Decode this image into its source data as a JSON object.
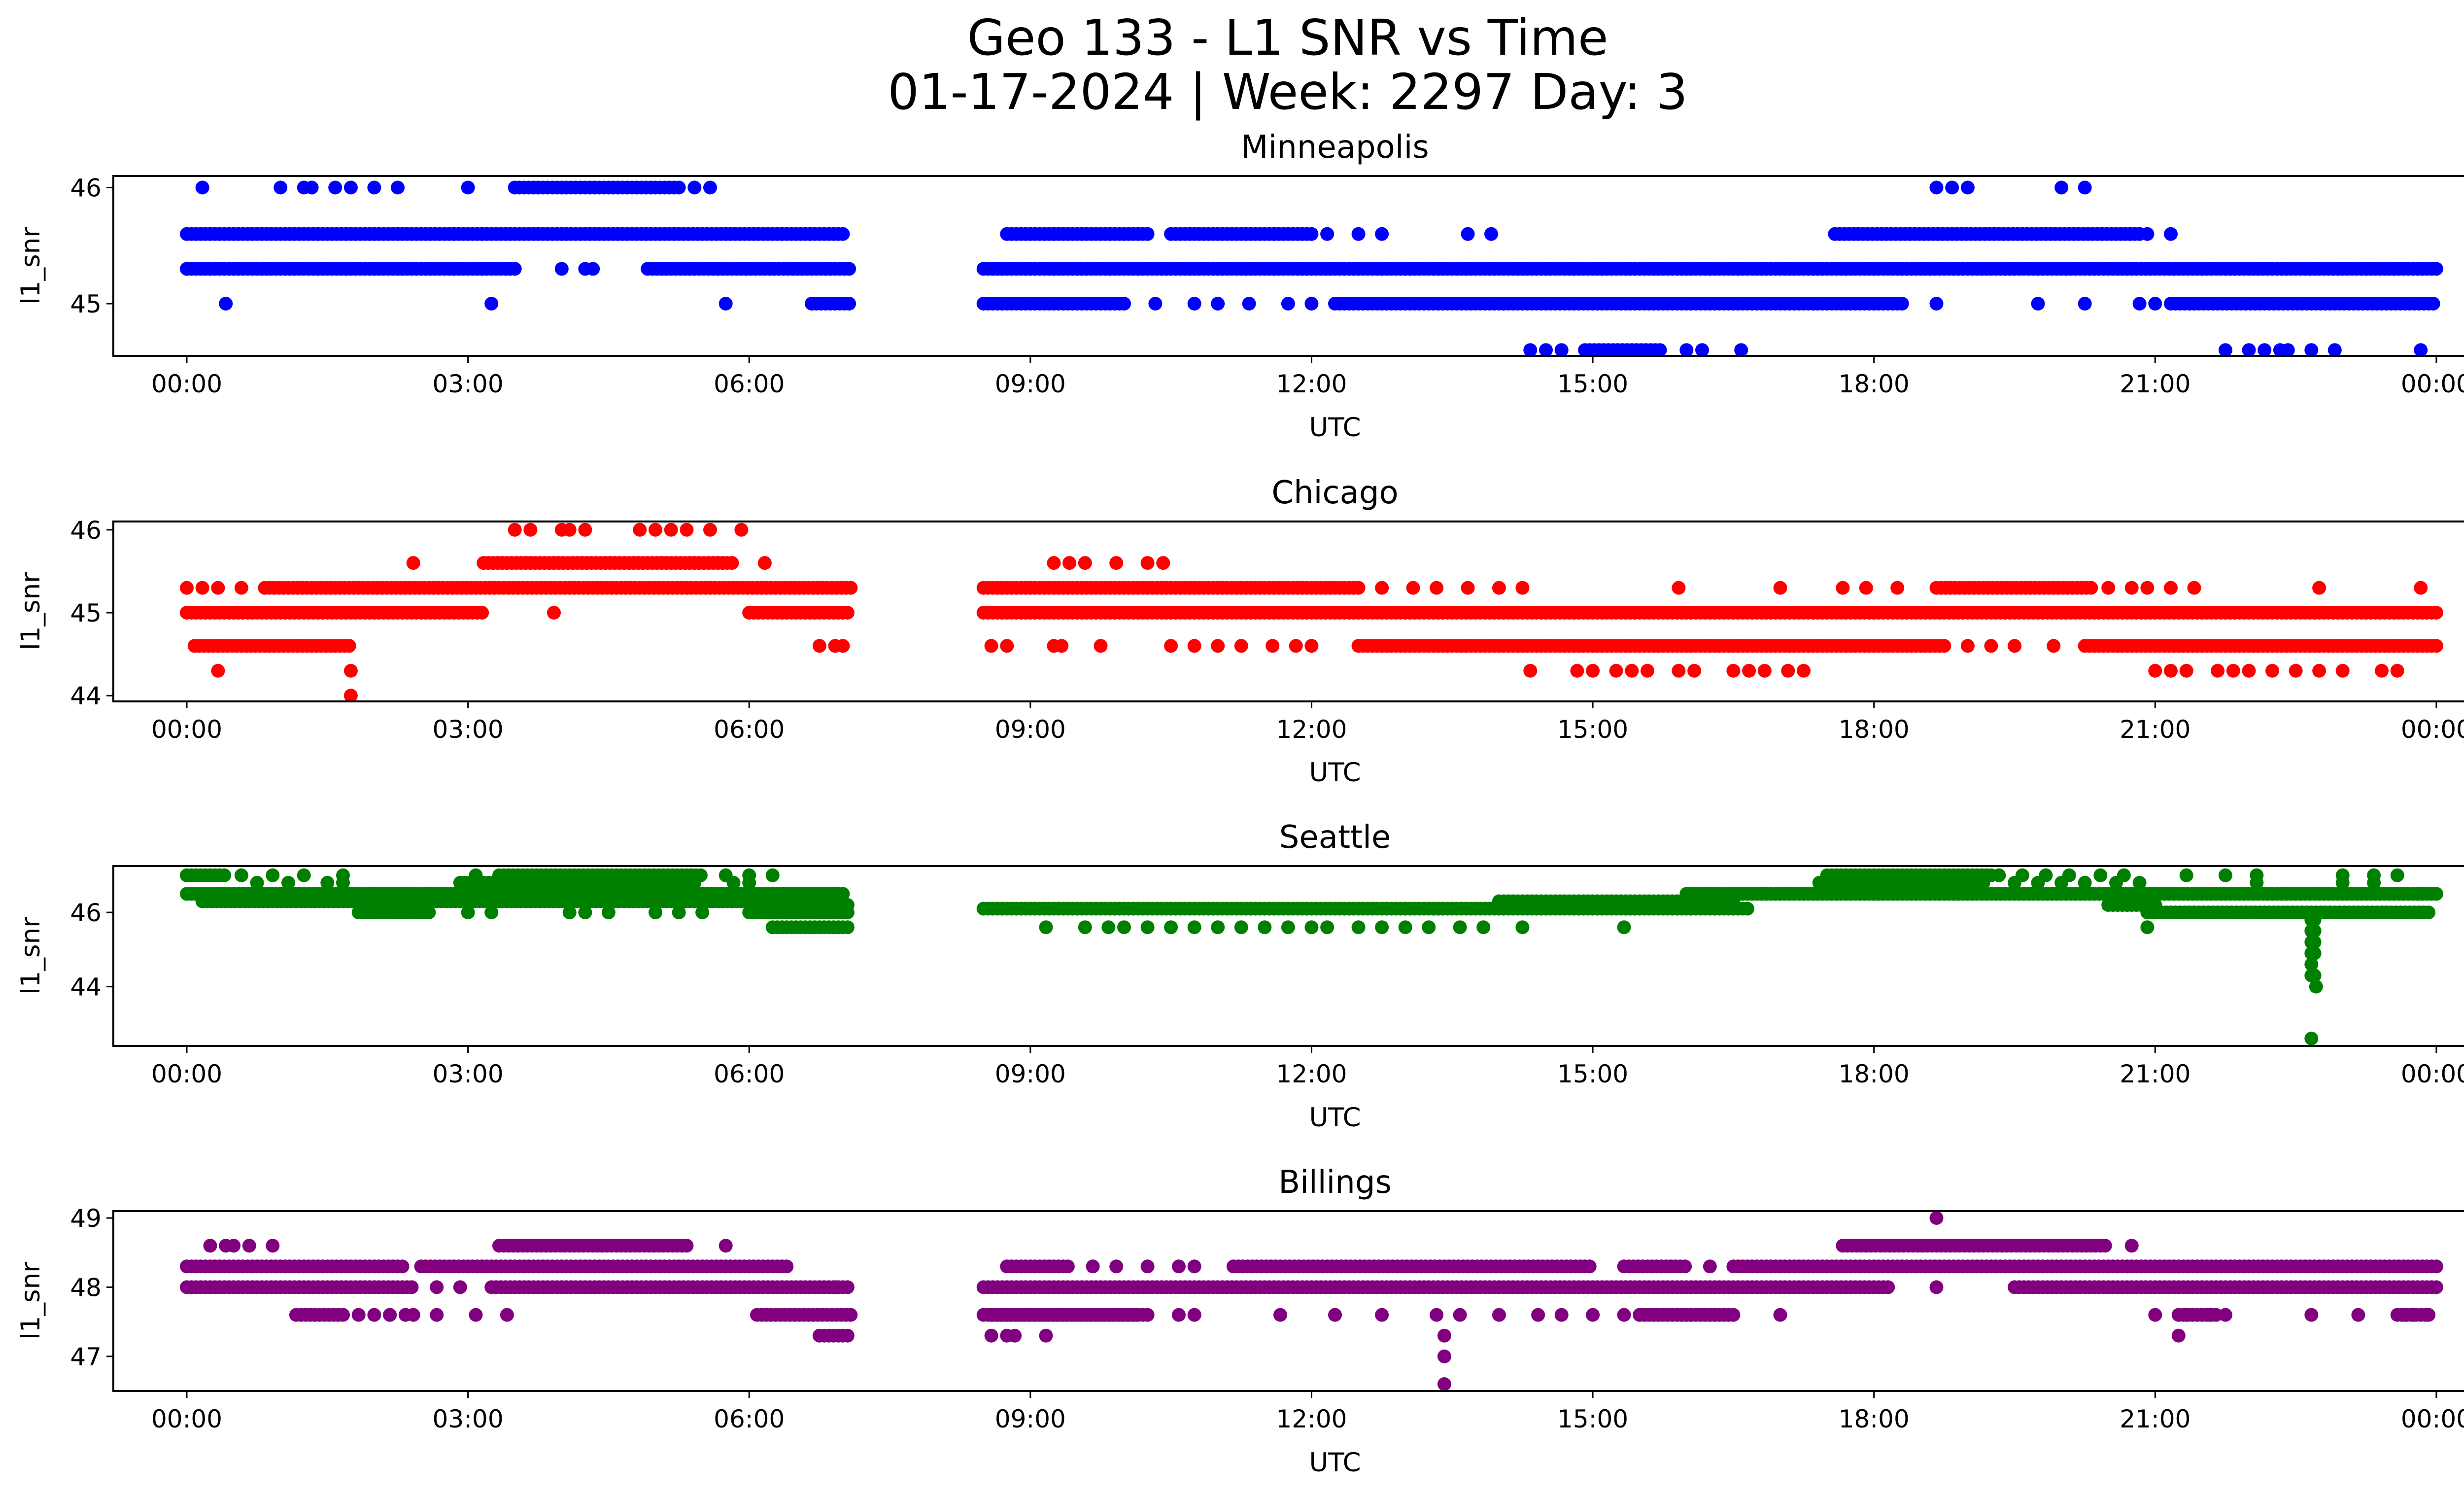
{
  "figure": {
    "title_line1": "Geo 133 - L1 SNR vs Time",
    "title_line2": "01-17-2024 | Week: 2297 Day: 3"
  },
  "chart_data": [
    {
      "type": "scatter",
      "title": "Minneapolis",
      "xlabel": "UTC",
      "ylabel": "l1_snr",
      "color": "#0000ff",
      "xlim": [
        "00:00",
        "24:30"
      ],
      "ylim": [
        44.55,
        46.1
      ],
      "yticks": [
        {
          "v": 45,
          "label": "45"
        },
        {
          "v": 46,
          "label": "46"
        }
      ],
      "xticks": [
        "00:00",
        "03:00",
        "06:00",
        "09:00",
        "12:00",
        "15:00",
        "18:00",
        "21:00",
        "00:00"
      ],
      "series": [
        {
          "level": 45.6,
          "segments": [
            [
              "00:00",
              "07:00"
            ],
            [
              "08:45",
              "10:15"
            ],
            [
              "10:30",
              "12:00"
            ],
            [
              "17:35",
              "20:50"
            ]
          ],
          "points": [
            "09:15",
            "12:10",
            "12:30",
            "12:45",
            "13:40",
            "13:55",
            "20:55",
            "21:10"
          ]
        },
        {
          "level": 45.3,
          "segments": [
            [
              "00:00",
              "03:30"
            ],
            [
              "04:55",
              "07:05"
            ],
            [
              "08:30",
              "24:00"
            ]
          ],
          "points": [
            "04:00",
            "04:15",
            "04:20"
          ]
        },
        {
          "level": 45.0,
          "segments": [
            [
              "06:40",
              "07:05"
            ],
            [
              "08:30",
              "10:00"
            ],
            [
              "12:15",
              "18:20"
            ],
            [
              "21:10",
              "24:00"
            ]
          ],
          "points": [
            "00:25",
            "03:15",
            "05:45",
            "10:20",
            "10:45",
            "11:00",
            "11:20",
            "11:45",
            "12:00",
            "18:40",
            "19:45",
            "20:15",
            "20:50",
            "21:00"
          ]
        },
        {
          "level": 46.0,
          "segments": [
            [
              "03:30",
              "05:15"
            ]
          ],
          "points": [
            "00:10",
            "01:00",
            "01:15",
            "01:20",
            "01:35",
            "01:45",
            "02:00",
            "02:15",
            "03:00",
            "05:25",
            "05:35",
            "18:40",
            "18:50",
            "19:00",
            "20:00",
            "20:15"
          ]
        },
        {
          "level": 44.6,
          "segments": [
            [
              "14:55",
              "15:45"
            ]
          ],
          "points": [
            "14:20",
            "14:30",
            "14:40",
            "16:00",
            "16:10",
            "16:35",
            "21:45",
            "22:00",
            "22:10",
            "22:20",
            "22:25",
            "22:40",
            "22:55",
            "23:50"
          ]
        }
      ]
    },
    {
      "type": "scatter",
      "title": "Chicago",
      "xlabel": "UTC",
      "ylabel": "l1_snr",
      "color": "#ff0000",
      "xlim": [
        "00:00",
        "24:30"
      ],
      "ylim": [
        43.93,
        46.1
      ],
      "yticks": [
        {
          "v": 44,
          "label": "44"
        },
        {
          "v": 45,
          "label": "45"
        },
        {
          "v": 46,
          "label": "46"
        }
      ],
      "xticks": [
        "00:00",
        "03:00",
        "06:00",
        "09:00",
        "12:00",
        "15:00",
        "18:00",
        "21:00",
        "00:00"
      ],
      "series": [
        {
          "level": 45.0,
          "segments": [
            [
              "00:00",
              "03:10"
            ],
            [
              "06:00",
              "07:05"
            ],
            [
              "08:30",
              "24:00"
            ]
          ],
          "points": []
        },
        {
          "level": 45.3,
          "segments": [
            [
              "00:50",
              "07:05"
            ],
            [
              "08:30",
              "12:30"
            ],
            [
              "18:40",
              "20:20"
            ]
          ],
          "points": [
            "00:00",
            "00:10",
            "00:20",
            "00:35",
            "00:50",
            "12:45",
            "13:05",
            "13:20",
            "13:40",
            "14:00",
            "14:15",
            "15:55",
            "17:00",
            "17:40",
            "17:55",
            "18:15",
            "20:30",
            "20:45",
            "20:55",
            "21:10",
            "21:25",
            "22:45",
            "23:50"
          ]
        },
        {
          "level": 44.6,
          "segments": [
            [
              "00:05",
              "01:45"
            ],
            [
              "12:30",
              "18:45"
            ],
            [
              "20:15",
              "24:00"
            ]
          ],
          "points": [
            "06:45",
            "06:55",
            "07:00",
            "08:35",
            "08:45",
            "09:15",
            "09:20",
            "09:45",
            "10:30",
            "10:45",
            "11:00",
            "11:15",
            "11:35",
            "11:50",
            "12:00",
            "19:00",
            "19:15",
            "19:30",
            "19:55"
          ]
        },
        {
          "level": 45.6,
          "segments": [
            [
              "03:10",
              "05:50"
            ]
          ],
          "points": [
            "02:25",
            "06:10",
            "09:15",
            "09:25",
            "09:35",
            "09:55",
            "10:15",
            "10:25"
          ]
        },
        {
          "level": 46.0,
          "segments": [],
          "points": [
            "03:30",
            "03:40",
            "04:00",
            "04:05",
            "04:15",
            "04:50",
            "05:00",
            "05:10",
            "05:20",
            "05:35",
            "05:55"
          ]
        },
        {
          "level": 44.3,
          "segments": [],
          "points": [
            "00:20",
            "01:45",
            "14:20",
            "14:50",
            "15:00",
            "15:15",
            "15:25",
            "15:35",
            "15:55",
            "16:05",
            "16:30",
            "16:40",
            "16:50",
            "17:05",
            "17:15",
            "21:00",
            "21:10",
            "21:20",
            "21:40",
            "21:50",
            "22:00",
            "22:15",
            "22:30",
            "22:45",
            "23:00",
            "23:25",
            "23:35"
          ]
        },
        {
          "level": 44.0,
          "segments": [],
          "points": [
            "01:45"
          ]
        },
        {
          "level": 45.0,
          "segments": [],
          "points": [
            "03:55"
          ]
        }
      ]
    },
    {
      "type": "scatter",
      "title": "Seattle",
      "xlabel": "UTC",
      "ylabel": "l1_snr",
      "color": "#008000",
      "xlim": [
        "00:00",
        "24:30"
      ],
      "ylim": [
        42.4,
        47.25
      ],
      "yticks": [
        {
          "v": 44,
          "label": "44"
        },
        {
          "v": 46,
          "label": "46"
        }
      ],
      "xticks": [
        "00:00",
        "03:00",
        "06:00",
        "09:00",
        "12:00",
        "15:00",
        "18:00",
        "21:00",
        "00:00"
      ],
      "series": [
        {
          "level": 46.3,
          "segments": [
            [
              "00:10",
              "06:30"
            ],
            [
              "14:00",
              "16:30"
            ]
          ],
          "points": []
        },
        {
          "level": 46.1,
          "segments": [
            [
              "08:30",
              "16:40"
            ]
          ],
          "points": []
        },
        {
          "level": 46.5,
          "segments": [
            [
              "00:00",
              "07:00"
            ],
            [
              "16:00",
              "24:00"
            ]
          ],
          "points": []
        },
        {
          "level": 46.2,
          "segments": [
            [
              "06:15",
              "07:05"
            ],
            [
              "20:30",
              "21:00"
            ]
          ],
          "points": []
        },
        {
          "level": 46.8,
          "segments": [
            [
              "02:55",
              "05:25"
            ],
            [
              "17:25",
              "19:10"
            ]
          ],
          "points": [
            "00:45",
            "01:05",
            "01:30",
            "01:40",
            "05:50",
            "06:00",
            "19:30",
            "19:45",
            "20:00",
            "20:15",
            "20:35",
            "20:50",
            "22:05",
            "23:00",
            "23:20"
          ]
        },
        {
          "level": 47.0,
          "segments": [
            [
              "00:00",
              "00:25"
            ],
            [
              "03:20",
              "05:30"
            ],
            [
              "17:30",
              "19:15"
            ]
          ],
          "points": [
            "00:35",
            "00:55",
            "01:15",
            "01:40",
            "03:05",
            "05:45",
            "06:00",
            "06:15",
            "19:20",
            "19:35",
            "19:50",
            "20:05",
            "20:25",
            "20:40",
            "21:20",
            "21:45",
            "22:05",
            "23:00",
            "23:20",
            "23:35"
          ]
        },
        {
          "level": 45.6,
          "segments": [
            [
              "06:15",
              "07:05"
            ]
          ],
          "points": [
            "09:10",
            "09:35",
            "09:50",
            "10:00",
            "10:15",
            "10:30",
            "10:45",
            "11:00",
            "11:15",
            "11:30",
            "11:45",
            "12:00",
            "12:10",
            "12:30",
            "12:45",
            "13:00",
            "13:15",
            "13:35",
            "13:50",
            "14:15",
            "15:20",
            "20:55"
          ]
        },
        {
          "level": 46.0,
          "segments": [
            [
              "01:50",
              "02:35"
            ],
            [
              "06:00",
              "07:05"
            ],
            [
              "20:55",
              "23:55"
            ]
          ],
          "points": [
            "03:00",
            "03:15",
            "04:05",
            "04:15",
            "04:30",
            "05:00",
            "05:15",
            "05:30"
          ]
        },
        {
          "level": 45.8,
          "segments": [],
          "points": [
            "22:40",
            "22:42"
          ]
        },
        {
          "level": 45.5,
          "segments": [],
          "points": [
            "22:40",
            "22:42"
          ]
        },
        {
          "level": 45.2,
          "segments": [],
          "points": [
            "22:40",
            "22:42"
          ]
        },
        {
          "level": 44.9,
          "segments": [],
          "points": [
            "22:40",
            "22:42"
          ]
        },
        {
          "level": 44.6,
          "segments": [],
          "points": [
            "22:40"
          ]
        },
        {
          "level": 44.3,
          "segments": [],
          "points": [
            "22:40",
            "22:42"
          ]
        },
        {
          "level": 44.0,
          "segments": [],
          "points": [
            "22:43"
          ]
        },
        {
          "level": 42.6,
          "segments": [],
          "points": [
            "22:40"
          ]
        }
      ]
    },
    {
      "type": "scatter",
      "title": "Billings",
      "xlabel": "UTC",
      "ylabel": "l1_snr",
      "color": "#800080",
      "xlim": [
        "00:00",
        "24:30"
      ],
      "ylim": [
        46.5,
        49.1
      ],
      "yticks": [
        {
          "v": 47,
          "label": "47"
        },
        {
          "v": 48,
          "label": "48"
        },
        {
          "v": 49,
          "label": "49"
        }
      ],
      "xticks": [
        "00:00",
        "03:00",
        "06:00",
        "09:00",
        "12:00",
        "15:00",
        "18:00",
        "21:00",
        "00:00"
      ],
      "series": [
        {
          "level": 48.3,
          "segments": [
            [
              "00:00",
              "02:20"
            ],
            [
              "02:30",
              "06:25"
            ],
            [
              "08:45",
              "09:25"
            ],
            [
              "11:10",
              "15:00"
            ],
            [
              "15:20",
              "16:00"
            ],
            [
              "16:30",
              "24:00"
            ]
          ],
          "points": [
            "09:40",
            "09:55",
            "10:15",
            "10:35",
            "10:45",
            "16:15"
          ]
        },
        {
          "level": 48.0,
          "segments": [
            [
              "00:00",
              "02:25"
            ],
            [
              "03:15",
              "07:05"
            ],
            [
              "08:30",
              "18:10"
            ],
            [
              "19:30",
              "24:00"
            ]
          ],
          "points": [
            "02:40",
            "02:55",
            "06:55"
          ]
        },
        {
          "level": 48.6,
          "segments": [
            [
              "03:20",
              "05:20"
            ],
            [
              "17:40",
              "20:30"
            ]
          ],
          "points": [
            "00:15",
            "00:25",
            "00:30",
            "00:40",
            "00:55",
            "05:45",
            "20:45"
          ]
        },
        {
          "level": 47.6,
          "segments": [
            [
              "01:10",
              "01:40"
            ],
            [
              "08:30",
              "10:15"
            ],
            [
              "15:30",
              "16:30"
            ]
          ],
          "points": [
            "01:50",
            "02:10",
            "02:25",
            "02:40",
            "03:05",
            "03:25",
            "10:35",
            "10:45",
            "11:40",
            "12:15",
            "12:45",
            "13:20",
            "13:35",
            "14:00",
            "14:25",
            "14:40",
            "15:00",
            "15:20",
            "17:00",
            "21:00",
            "21:20",
            "21:30",
            "21:35",
            "21:45",
            "22:40",
            "23:10",
            "23:40",
            "23:45",
            "23:55"
          ]
        },
        {
          "level": 47.6,
          "segments": [
            [
              "06:05",
              "07:05"
            ],
            [
              "08:35",
              "10:10"
            ],
            [
              "15:30",
              "16:25"
            ],
            [
              "21:15",
              "21:40"
            ],
            [
              "23:35",
              "23:55"
            ]
          ],
          "points": [
            "02:00",
            "02:10",
            "02:20"
          ]
        },
        {
          "level": 47.3,
          "segments": [
            [
              "06:45",
              "07:05"
            ]
          ],
          "points": [
            "08:35",
            "08:45",
            "08:50",
            "09:10",
            "21:15"
          ]
        },
        {
          "level": 47.0,
          "segments": [],
          "points": [
            "13:25"
          ]
        },
        {
          "level": 47.3,
          "segments": [],
          "points": [
            "13:25"
          ]
        },
        {
          "level": 46.6,
          "segments": [],
          "points": [
            "13:25"
          ]
        },
        {
          "level": 49.0,
          "segments": [],
          "points": [
            "18:40"
          ]
        },
        {
          "level": 48.0,
          "segments": [],
          "points": [
            "18:40"
          ]
        }
      ]
    }
  ]
}
